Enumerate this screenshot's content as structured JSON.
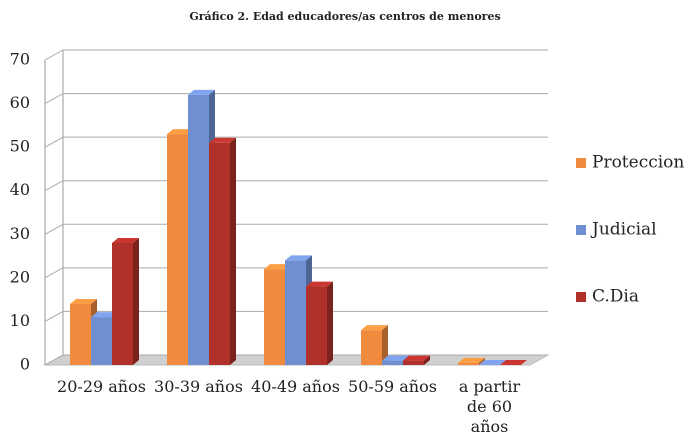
{
  "chart_data": {
    "type": "bar",
    "title": "Gráfico 2. Edad educadores/as centros de menores",
    "categories": [
      "20-29 años",
      "30-39 años",
      "40-49 años",
      "50-59 años",
      "a partir de 60 años"
    ],
    "series": [
      {
        "name": "Proteccion",
        "color": "#f08a3c",
        "values": [
          14,
          53,
          22,
          8,
          0.5
        ]
      },
      {
        "name": "Judicial",
        "color": "#6f8fd0",
        "values": [
          11,
          62,
          24,
          1,
          0
        ]
      },
      {
        "name": "C.Dia",
        "color": "#b0302a",
        "values": [
          28,
          51,
          18,
          1,
          0
        ]
      }
    ],
    "ylim": [
      0,
      70
    ],
    "yticks": [
      0,
      10,
      20,
      30,
      40,
      50,
      60,
      70
    ],
    "grid": true,
    "legend": "right"
  }
}
